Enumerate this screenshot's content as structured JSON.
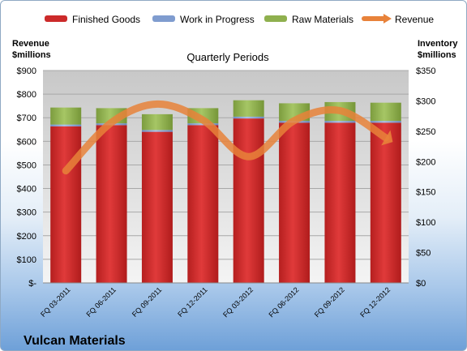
{
  "chart_data": {
    "type": "bar",
    "stacked": true,
    "title": "Quarterly Periods",
    "company": "Vulcan Materials",
    "categories": [
      "FQ 03-2011",
      "FQ 06-2011",
      "FQ 09-2011",
      "FQ 12-2011",
      "FQ 03-2012",
      "FQ 06-2012",
      "FQ 09-2012",
      "FQ 12-2012"
    ],
    "left_axis": {
      "label_line1": "Revenue",
      "label_line2": "$millions",
      "range": [
        0,
        900
      ],
      "ticks": [
        "$-",
        "$100",
        "$200",
        "$300",
        "$400",
        "$500",
        "$600",
        "$700",
        "$800",
        "$900"
      ]
    },
    "right_axis": {
      "label_line1": "Inventory",
      "label_line2": "$millions",
      "range": [
        0,
        350
      ],
      "ticks": [
        "$0",
        "$50",
        "$100",
        "$150",
        "$200",
        "$250",
        "$300",
        "$350"
      ]
    },
    "series": [
      {
        "name": "Finished Goods",
        "axis": "right",
        "color": "#cc2a2a",
        "values": [
          258,
          260,
          249,
          260,
          271,
          264,
          264,
          264
        ]
      },
      {
        "name": "Work in Progress",
        "axis": "right",
        "color": "#7f9ccf",
        "values": [
          3,
          3,
          3,
          3,
          3,
          3,
          3,
          3
        ]
      },
      {
        "name": "Raw Materials",
        "axis": "right",
        "color": "#8fb04e",
        "values": [
          28,
          25,
          26,
          25,
          27,
          29,
          31,
          30
        ]
      },
      {
        "name": "Revenue",
        "axis": "left",
        "type": "line",
        "color": "#e8823a",
        "values": [
          475,
          680,
          758,
          690,
          535,
          688,
          730,
          615
        ]
      }
    ],
    "grid": true,
    "legend_position": "top"
  }
}
